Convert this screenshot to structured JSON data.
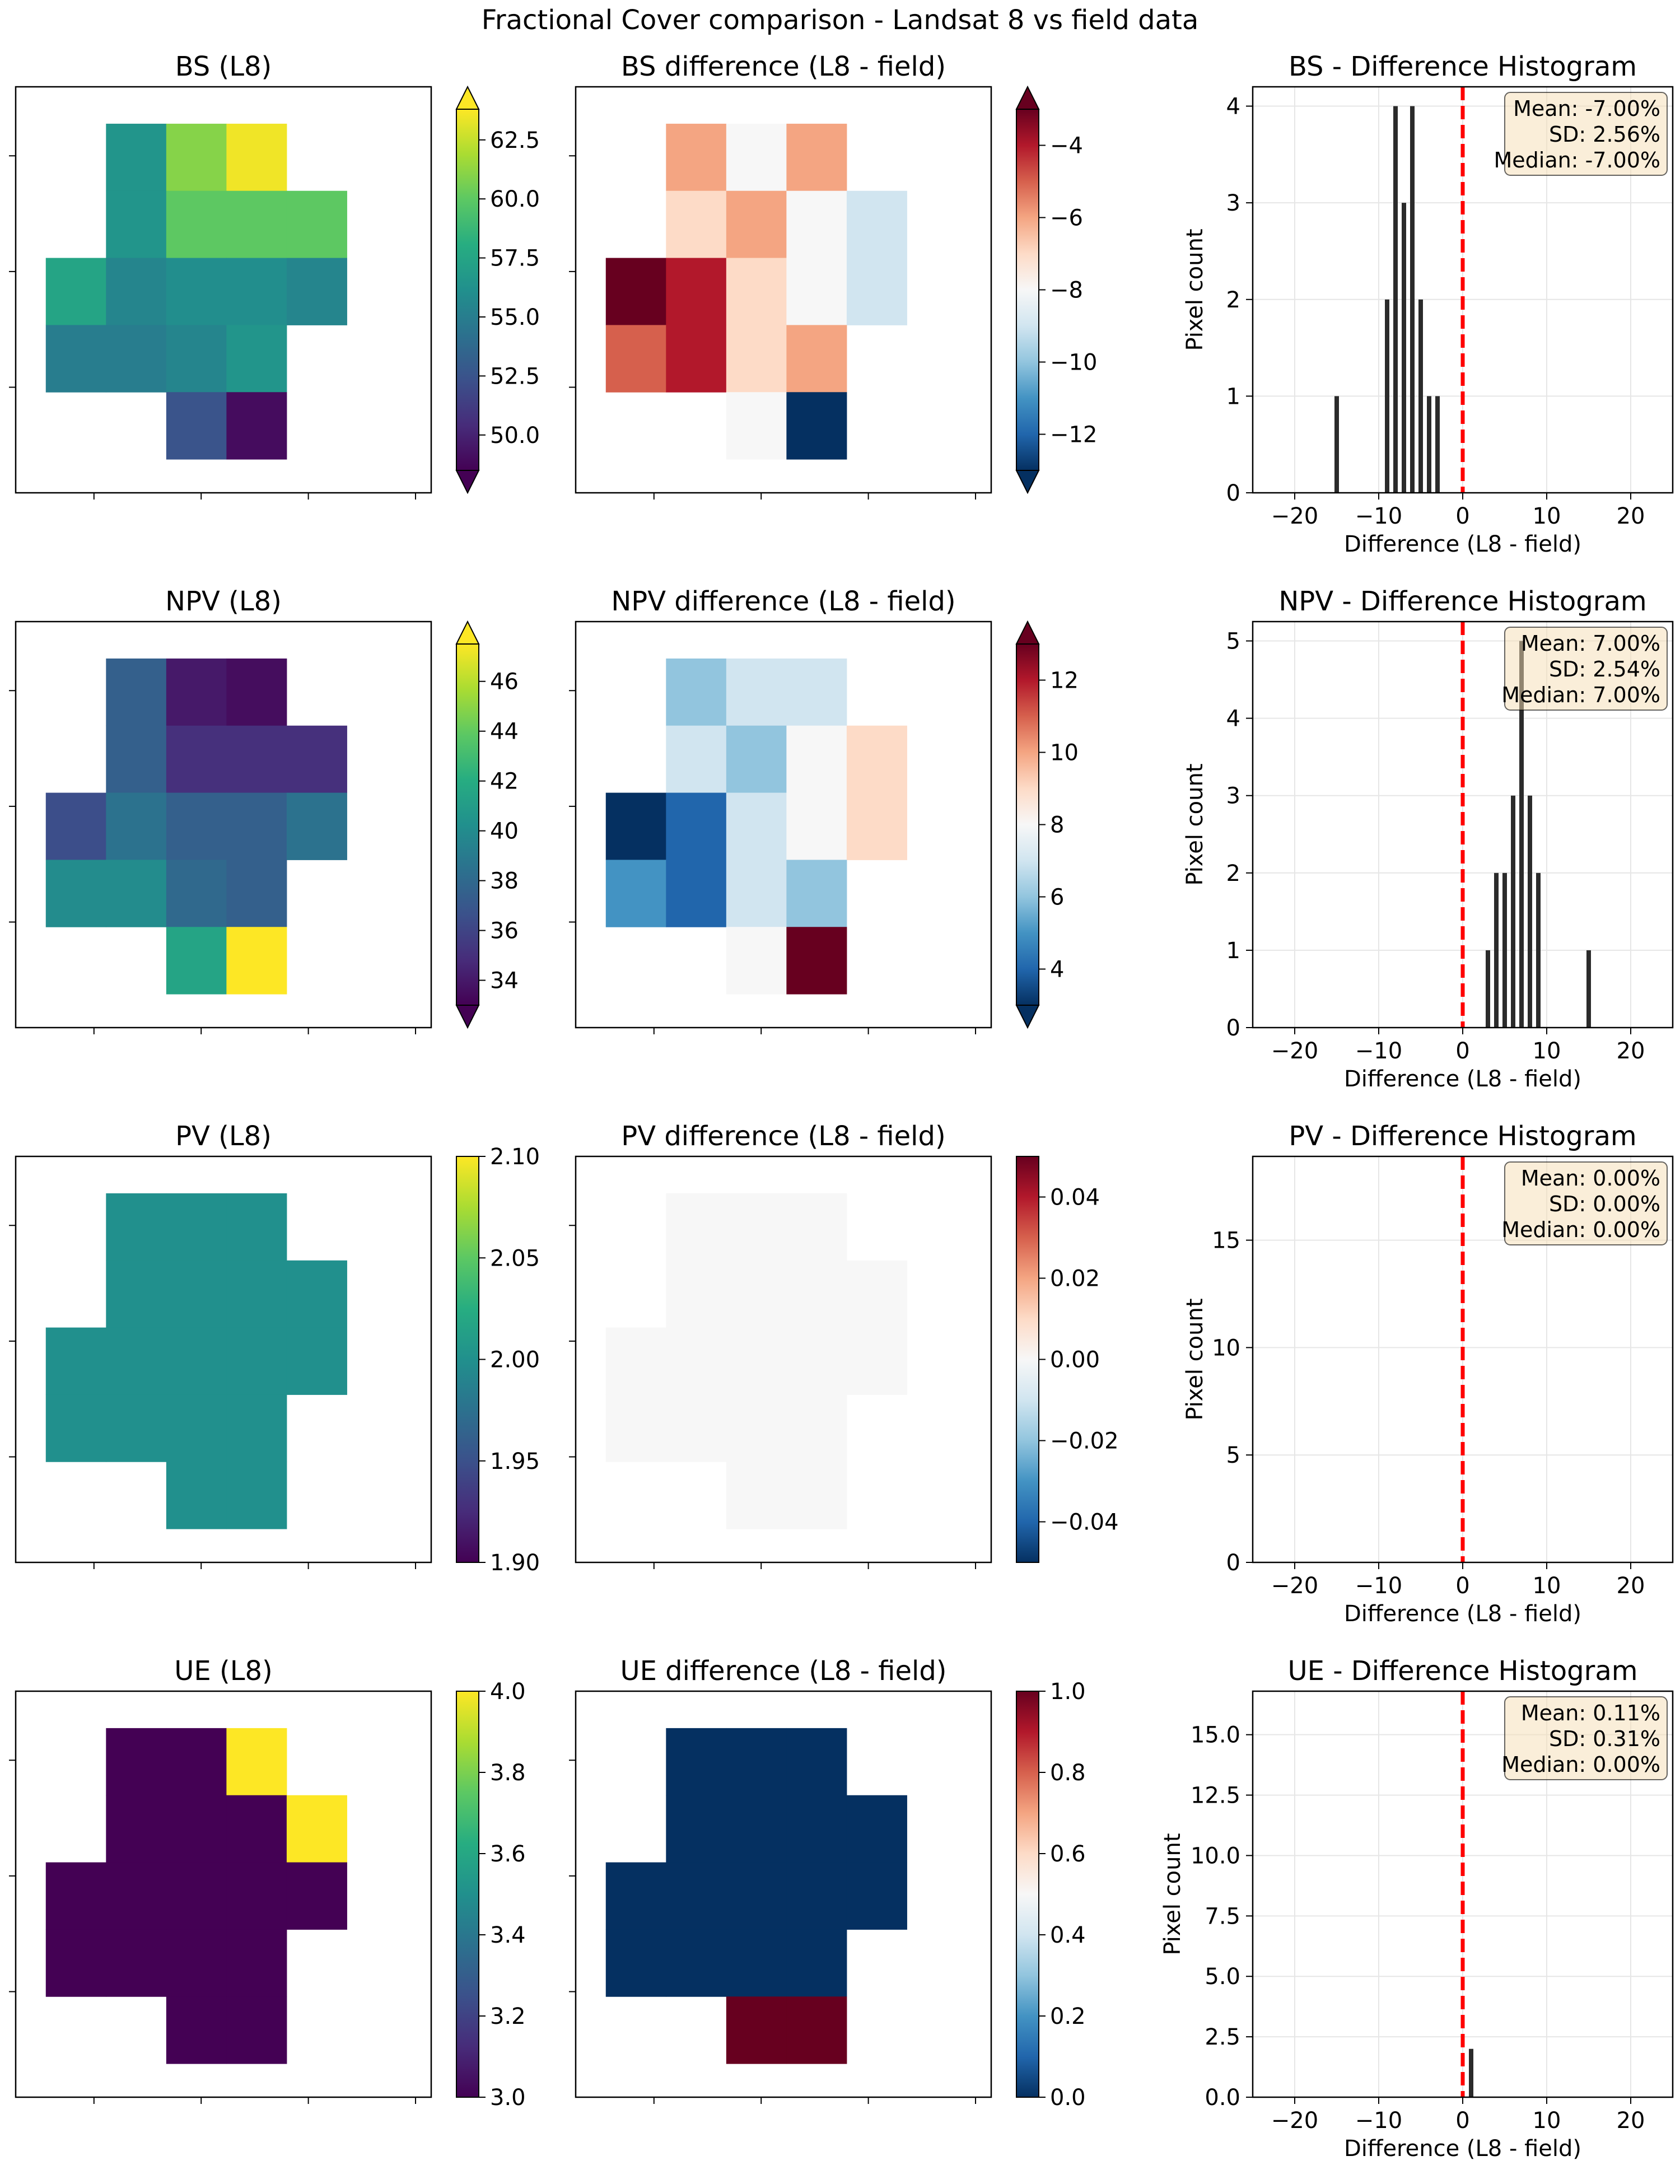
{
  "figure_title": "Fractional Cover comparison - Landsat 8 vs field data",
  "colors": {
    "hist_bar": "#2b2b2b",
    "zero_line": "#ff0000",
    "stats_box_fill": "#f5deb3",
    "grid": "#e6e6e6"
  },
  "chart_data": [
    {
      "type": "heatmap",
      "id": "bs_l8",
      "title": "BS (L8)",
      "colormap": "viridis",
      "colorbar": {
        "min": 48.5,
        "max": 63.8,
        "ticks": [
          "50.0",
          "52.5",
          "55.0",
          "57.5",
          "60.0",
          "62.5"
        ],
        "extend": "both"
      },
      "cells": [
        [
          null,
          null,
          null,
          null,
          null,
          null
        ],
        [
          null,
          null,
          56.5,
          61.0,
          63.5,
          null
        ],
        [
          null,
          null,
          56.5,
          60.0,
          60.0,
          60.0
        ],
        [
          null,
          57.5,
          55.5,
          56.0,
          56.0,
          55.5
        ],
        [
          null,
          55.0,
          55.0,
          55.5,
          56.5,
          null
        ],
        [
          null,
          null,
          null,
          52.5,
          49.0,
          null
        ]
      ]
    },
    {
      "type": "heatmap",
      "id": "bs_diff",
      "title": "BS difference (L8 - field)",
      "colormap": "RdBu_r",
      "colorbar": {
        "min": -13,
        "max": -3,
        "ticks": [
          "−12",
          "−10",
          "−8",
          "−6",
          "−4"
        ],
        "extend": "both"
      },
      "cells": [
        [
          null,
          null,
          null,
          null,
          null,
          null
        ],
        [
          null,
          null,
          -6,
          -8,
          -6,
          null
        ],
        [
          null,
          null,
          -7,
          -6,
          -8,
          -9
        ],
        [
          null,
          -3,
          -4,
          -7,
          -8,
          -9
        ],
        [
          null,
          -5,
          -4,
          -7,
          -6,
          null
        ],
        [
          null,
          null,
          null,
          -8,
          -13,
          null
        ]
      ]
    },
    {
      "type": "bar",
      "id": "bs_hist",
      "title": "BS - Difference Histogram",
      "xlabel": "Difference (L8 - field)",
      "ylabel": "Pixel count",
      "xlim": [
        -25,
        25
      ],
      "ylim": [
        0,
        4.2
      ],
      "xticks": [
        -20,
        -10,
        0,
        10,
        20
      ],
      "yticks": [
        0,
        1,
        2,
        3,
        4
      ],
      "bins": [
        [
          -15,
          1
        ],
        [
          -9,
          2
        ],
        [
          -8,
          4
        ],
        [
          -7,
          3
        ],
        [
          -6,
          4
        ],
        [
          -5,
          2
        ],
        [
          -4,
          1
        ],
        [
          -3,
          1
        ]
      ],
      "stats": [
        "Mean: -7.00%",
        "SD: 2.56%",
        "Median: -7.00%"
      ]
    },
    {
      "type": "heatmap",
      "id": "npv_l8",
      "title": "NPV (L8)",
      "colormap": "viridis",
      "colorbar": {
        "min": 33.0,
        "max": 47.5,
        "ticks": [
          "34",
          "36",
          "38",
          "40",
          "42",
          "44",
          "46"
        ],
        "extend": "both"
      },
      "cells": [
        [
          null,
          null,
          null,
          null,
          null,
          null
        ],
        [
          null,
          null,
          37.5,
          34.0,
          33.5,
          null
        ],
        [
          null,
          null,
          37.5,
          35.0,
          35.0,
          35.0
        ],
        [
          null,
          36.5,
          38.5,
          37.5,
          37.5,
          38.5
        ],
        [
          null,
          40.0,
          40.0,
          38.0,
          37.5,
          null
        ],
        [
          null,
          null,
          null,
          41.5,
          47.5,
          null
        ]
      ]
    },
    {
      "type": "heatmap",
      "id": "npv_diff",
      "title": "NPV difference (L8 - field)",
      "colormap": "RdBu_r",
      "colorbar": {
        "min": 3,
        "max": 13,
        "ticks": [
          "4",
          "6",
          "8",
          "10",
          "12"
        ],
        "extend": "both"
      },
      "cells": [
        [
          null,
          null,
          null,
          null,
          null,
          null
        ],
        [
          null,
          null,
          6,
          7,
          7,
          null
        ],
        [
          null,
          null,
          7,
          6,
          8,
          9
        ],
        [
          null,
          3,
          4,
          7,
          8,
          9
        ],
        [
          null,
          5,
          4,
          7,
          6,
          null
        ],
        [
          null,
          null,
          null,
          8,
          13,
          null
        ]
      ]
    },
    {
      "type": "bar",
      "id": "npv_hist",
      "title": "NPV - Difference Histogram",
      "xlabel": "Difference (L8 - field)",
      "ylabel": "Pixel count",
      "xlim": [
        -25,
        25
      ],
      "ylim": [
        0,
        5.25
      ],
      "xticks": [
        -20,
        -10,
        0,
        10,
        20
      ],
      "yticks": [
        0,
        1,
        2,
        3,
        4,
        5
      ],
      "bins": [
        [
          3,
          1
        ],
        [
          4,
          2
        ],
        [
          5,
          2
        ],
        [
          6,
          3
        ],
        [
          7,
          5
        ],
        [
          8,
          3
        ],
        [
          9,
          2
        ],
        [
          15,
          1
        ]
      ],
      "stats": [
        "Mean: 7.00%",
        "SD: 2.54%",
        "Median: 7.00%"
      ]
    },
    {
      "type": "heatmap",
      "id": "pv_l8",
      "title": "PV (L8)",
      "colormap": "viridis",
      "colorbar": {
        "min": 1.9,
        "max": 2.1,
        "ticks": [
          "1.90",
          "1.95",
          "2.00",
          "2.05",
          "2.10"
        ],
        "extend": "neither"
      },
      "cells": [
        [
          null,
          null,
          null,
          null,
          null,
          null
        ],
        [
          null,
          null,
          2.0,
          2.0,
          2.0,
          null
        ],
        [
          null,
          null,
          2.0,
          2.0,
          2.0,
          2.0
        ],
        [
          null,
          2.0,
          2.0,
          2.0,
          2.0,
          2.0
        ],
        [
          null,
          2.0,
          2.0,
          2.0,
          2.0,
          null
        ],
        [
          null,
          null,
          null,
          2.0,
          2.0,
          null
        ]
      ]
    },
    {
      "type": "heatmap",
      "id": "pv_diff",
      "title": "PV difference (L8 - field)",
      "colormap": "RdBu_r",
      "colorbar": {
        "min": -0.05,
        "max": 0.05,
        "ticks": [
          "−0.04",
          "−0.02",
          "0.00",
          "0.02",
          "0.04"
        ],
        "extend": "neither"
      },
      "cells": [
        [
          null,
          null,
          null,
          null,
          null,
          null
        ],
        [
          null,
          null,
          0,
          0,
          0,
          null
        ],
        [
          null,
          null,
          0,
          0,
          0,
          0
        ],
        [
          null,
          0,
          0,
          0,
          0,
          0
        ],
        [
          null,
          0,
          0,
          0,
          0,
          null
        ],
        [
          null,
          null,
          null,
          0,
          0,
          null
        ]
      ]
    },
    {
      "type": "bar",
      "id": "pv_hist",
      "title": "PV - Difference Histogram",
      "xlabel": "Difference (L8 - field)",
      "ylabel": "Pixel count",
      "xlim": [
        -25,
        25
      ],
      "ylim": [
        0,
        18.9
      ],
      "xticks": [
        -20,
        -10,
        0,
        10,
        20
      ],
      "yticks": [
        0,
        5,
        10,
        15
      ],
      "bins": [],
      "stats": [
        "Mean: 0.00%",
        "SD: 0.00%",
        "Median: 0.00%"
      ]
    },
    {
      "type": "heatmap",
      "id": "ue_l8",
      "title": "UE (L8)",
      "colormap": "viridis",
      "colorbar": {
        "min": 3.0,
        "max": 4.0,
        "ticks": [
          "3.0",
          "3.2",
          "3.4",
          "3.6",
          "3.8",
          "4.0"
        ],
        "extend": "neither"
      },
      "cells": [
        [
          null,
          null,
          null,
          null,
          null,
          null
        ],
        [
          null,
          null,
          3,
          3,
          4,
          null
        ],
        [
          null,
          null,
          3,
          3,
          3,
          4
        ],
        [
          null,
          3,
          3,
          3,
          3,
          3
        ],
        [
          null,
          3,
          3,
          3,
          3,
          null
        ],
        [
          null,
          null,
          null,
          3,
          3,
          null
        ]
      ]
    },
    {
      "type": "heatmap",
      "id": "ue_diff",
      "title": "UE difference (L8 - field)",
      "colormap": "RdBu_r",
      "colorbar": {
        "min": 0.0,
        "max": 1.0,
        "ticks": [
          "0.0",
          "0.2",
          "0.4",
          "0.6",
          "0.8",
          "1.0"
        ],
        "extend": "neither"
      },
      "cells": [
        [
          null,
          null,
          null,
          null,
          null,
          null
        ],
        [
          null,
          null,
          0,
          0,
          0,
          null
        ],
        [
          null,
          null,
          0,
          0,
          0,
          0
        ],
        [
          null,
          0,
          0,
          0,
          0,
          0
        ],
        [
          null,
          0,
          0,
          0,
          0,
          null
        ],
        [
          null,
          null,
          null,
          1,
          1,
          null
        ]
      ]
    },
    {
      "type": "bar",
      "id": "ue_hist",
      "title": "UE - Difference Histogram",
      "xlabel": "Difference (L8 - field)",
      "ylabel": "Pixel count",
      "xlim": [
        -25,
        25
      ],
      "ylim": [
        0,
        16.8
      ],
      "xticks": [
        -20,
        -10,
        0,
        10,
        20
      ],
      "yticks": [
        "0.0",
        "2.5",
        "5.0",
        "7.5",
        "10.0",
        "12.5",
        "15.0"
      ],
      "bins": [
        [
          1,
          2
        ]
      ],
      "stats": [
        "Mean: 0.11%",
        "SD: 0.31%",
        "Median: 0.00%"
      ]
    }
  ]
}
